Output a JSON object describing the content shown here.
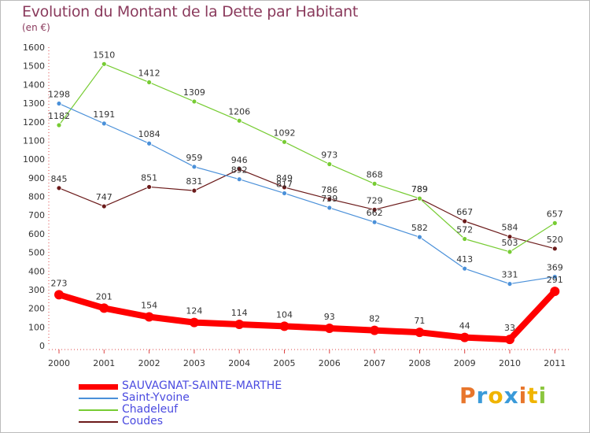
{
  "title": "Evolution du Montant de la Dette par Habitant",
  "subtitle": "(en €)",
  "logo": {
    "text": "Proxiti",
    "colors": [
      "#e8762c",
      "#3a9ad9",
      "#f0b400",
      "#3a9ad9",
      "#e8762c",
      "#f0b400",
      "#8cc63f"
    ]
  },
  "chart_data": {
    "type": "line",
    "x": [
      "2000",
      "2001",
      "2002",
      "2003",
      "2004",
      "2005",
      "2006",
      "2007",
      "2008",
      "2009",
      "2010",
      "2011"
    ],
    "ylim": [
      0,
      1600
    ],
    "yticks": [
      0,
      100,
      200,
      300,
      400,
      500,
      600,
      700,
      800,
      900,
      1000,
      1100,
      1200,
      1300,
      1400,
      1500,
      1600
    ],
    "grid": false,
    "legend_position": "bottom-left",
    "series": [
      {
        "name": "SAUVAGNAT-SAINTE-MARTHE",
        "color": "#ff0000",
        "values": [
          273,
          201,
          154,
          124,
          114,
          104,
          93,
          82,
          71,
          44,
          33,
          291
        ],
        "labels": [
          "273",
          "201",
          "154",
          "124",
          "114",
          "104",
          "93",
          "82",
          "71",
          "44",
          "33",
          "291"
        ]
      },
      {
        "name": "Saint-Yvoine",
        "color": "#4a90d9",
        "values": [
          1298,
          1191,
          1084,
          959,
          892,
          817,
          739,
          662,
          582,
          413,
          331,
          369
        ],
        "labels": [
          "1298",
          "1191",
          "1084",
          "959",
          "892",
          "817",
          "739",
          "662",
          "582",
          "413",
          "331",
          "369"
        ]
      },
      {
        "name": "Chadeleuf",
        "color": "#77cc33",
        "values": [
          1182,
          1510,
          1412,
          1309,
          1206,
          1092,
          973,
          868,
          789,
          572,
          503,
          657
        ],
        "labels": [
          "1182",
          "1510",
          "1412",
          "1309",
          "1206",
          "1092",
          "973",
          "868",
          "789",
          "572",
          "503",
          "657"
        ]
      },
      {
        "name": "Coudes",
        "color": "#6b1a1a",
        "values": [
          845,
          747,
          851,
          831,
          946,
          849,
          786,
          729,
          789,
          667,
          584,
          520
        ],
        "labels": [
          "845",
          "747",
          "851",
          "831",
          "946",
          "849",
          "786",
          "729",
          "789",
          "667",
          "584",
          "520"
        ]
      }
    ]
  }
}
